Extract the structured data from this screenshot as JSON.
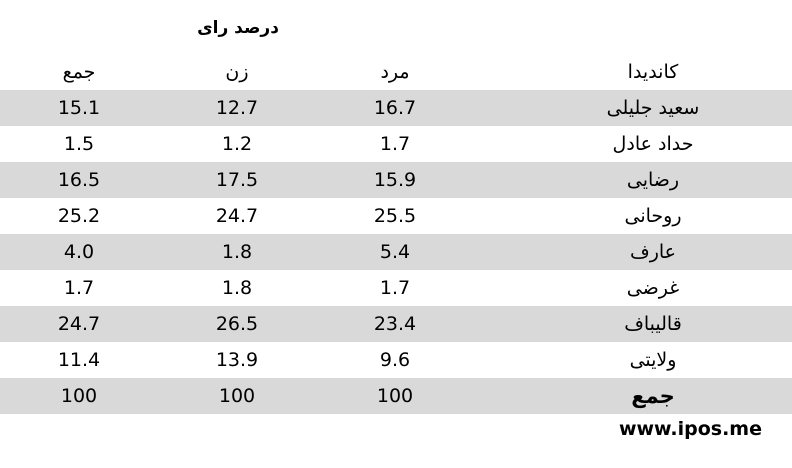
{
  "super_header": "درصد رای",
  "columns": {
    "candidate": "کاندیدا",
    "male": "مرد",
    "female": "زن",
    "total": "جمع"
  },
  "rows": [
    {
      "name": "سعید جلیلی",
      "male": "16.7",
      "female": "12.7",
      "total": "15.1"
    },
    {
      "name": "حداد عادل",
      "male": "1.7",
      "female": "1.2",
      "total": "1.5"
    },
    {
      "name": "رضایی",
      "male": "15.9",
      "female": "17.5",
      "total": "16.5"
    },
    {
      "name": "روحانی",
      "male": "25.5",
      "female": "24.7",
      "total": "25.2"
    },
    {
      "name": "عارف",
      "male": "5.4",
      "female": "1.8",
      "total": "4.0"
    },
    {
      "name": "غرضی",
      "male": "1.7",
      "female": "1.8",
      "total": "1.7"
    },
    {
      "name": "قالیباف",
      "male": "23.4",
      "female": "26.5",
      "total": "24.7"
    },
    {
      "name": "ولایتی",
      "male": "9.6",
      "female": "13.9",
      "total": "11.4"
    },
    {
      "name": "جمع",
      "male": "100",
      "female": "100",
      "total": "100"
    }
  ],
  "footer": "www.ipos.me",
  "colors": {
    "band": "#d9d9d9",
    "background": "#ffffff",
    "text": "#000000"
  },
  "chart_data": {
    "type": "table",
    "title": "درصد رای",
    "columns": [
      "کاندیدا",
      "مرد",
      "زن",
      "جمع"
    ],
    "categories": [
      "سعید جلیلی",
      "حداد عادل",
      "رضایی",
      "روحانی",
      "عارف",
      "غرضی",
      "قالیباف",
      "ولایتی",
      "جمع"
    ],
    "series": [
      {
        "name": "مرد",
        "values": [
          16.7,
          1.7,
          15.9,
          25.5,
          5.4,
          1.7,
          23.4,
          9.6,
          100
        ]
      },
      {
        "name": "زن",
        "values": [
          12.7,
          1.2,
          17.5,
          24.7,
          1.8,
          1.8,
          26.5,
          13.9,
          100
        ]
      },
      {
        "name": "جمع",
        "values": [
          15.1,
          1.5,
          16.5,
          25.2,
          4.0,
          1.7,
          24.7,
          11.4,
          100
        ]
      }
    ]
  }
}
